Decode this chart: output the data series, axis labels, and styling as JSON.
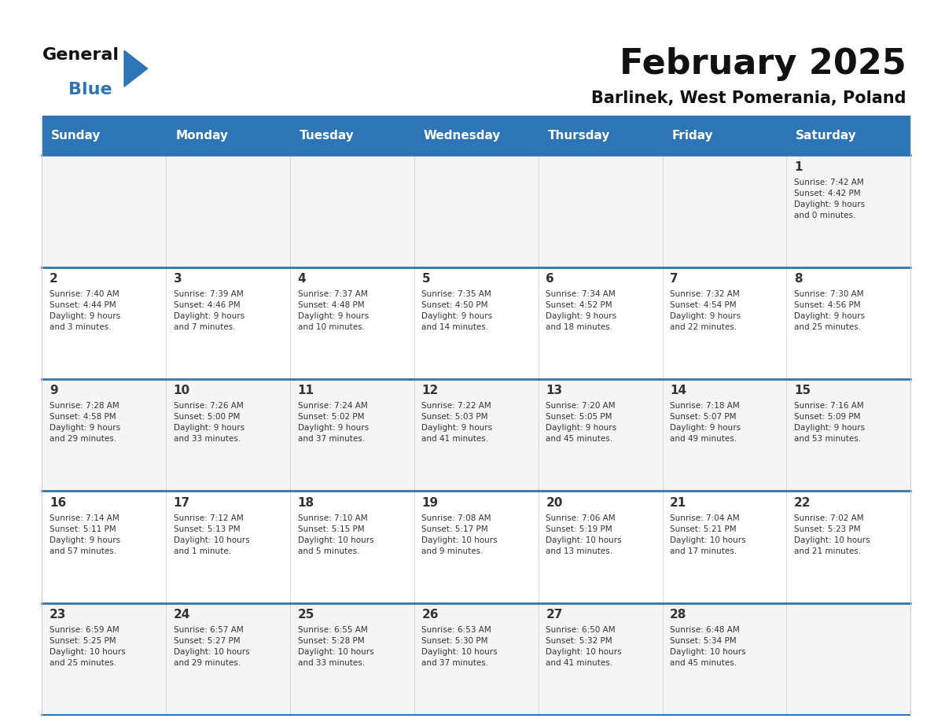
{
  "title": "February 2025",
  "subtitle": "Barlinek, West Pomerania, Poland",
  "header_bg": "#2e75b6",
  "header_text_color": "#ffffff",
  "cell_bg_light": "#f2f2f2",
  "cell_bg_white": "#ffffff",
  "divider_color": "#2e75b6",
  "text_color": "#333333",
  "days_of_week": [
    "Sunday",
    "Monday",
    "Tuesday",
    "Wednesday",
    "Thursday",
    "Friday",
    "Saturday"
  ],
  "weeks": [
    [
      {
        "day": null,
        "info": null
      },
      {
        "day": null,
        "info": null
      },
      {
        "day": null,
        "info": null
      },
      {
        "day": null,
        "info": null
      },
      {
        "day": null,
        "info": null
      },
      {
        "day": null,
        "info": null
      },
      {
        "day": 1,
        "info": "Sunrise: 7:42 AM\nSunset: 4:42 PM\nDaylight: 9 hours\nand 0 minutes."
      }
    ],
    [
      {
        "day": 2,
        "info": "Sunrise: 7:40 AM\nSunset: 4:44 PM\nDaylight: 9 hours\nand 3 minutes."
      },
      {
        "day": 3,
        "info": "Sunrise: 7:39 AM\nSunset: 4:46 PM\nDaylight: 9 hours\nand 7 minutes."
      },
      {
        "day": 4,
        "info": "Sunrise: 7:37 AM\nSunset: 4:48 PM\nDaylight: 9 hours\nand 10 minutes."
      },
      {
        "day": 5,
        "info": "Sunrise: 7:35 AM\nSunset: 4:50 PM\nDaylight: 9 hours\nand 14 minutes."
      },
      {
        "day": 6,
        "info": "Sunrise: 7:34 AM\nSunset: 4:52 PM\nDaylight: 9 hours\nand 18 minutes."
      },
      {
        "day": 7,
        "info": "Sunrise: 7:32 AM\nSunset: 4:54 PM\nDaylight: 9 hours\nand 22 minutes."
      },
      {
        "day": 8,
        "info": "Sunrise: 7:30 AM\nSunset: 4:56 PM\nDaylight: 9 hours\nand 25 minutes."
      }
    ],
    [
      {
        "day": 9,
        "info": "Sunrise: 7:28 AM\nSunset: 4:58 PM\nDaylight: 9 hours\nand 29 minutes."
      },
      {
        "day": 10,
        "info": "Sunrise: 7:26 AM\nSunset: 5:00 PM\nDaylight: 9 hours\nand 33 minutes."
      },
      {
        "day": 11,
        "info": "Sunrise: 7:24 AM\nSunset: 5:02 PM\nDaylight: 9 hours\nand 37 minutes."
      },
      {
        "day": 12,
        "info": "Sunrise: 7:22 AM\nSunset: 5:03 PM\nDaylight: 9 hours\nand 41 minutes."
      },
      {
        "day": 13,
        "info": "Sunrise: 7:20 AM\nSunset: 5:05 PM\nDaylight: 9 hours\nand 45 minutes."
      },
      {
        "day": 14,
        "info": "Sunrise: 7:18 AM\nSunset: 5:07 PM\nDaylight: 9 hours\nand 49 minutes."
      },
      {
        "day": 15,
        "info": "Sunrise: 7:16 AM\nSunset: 5:09 PM\nDaylight: 9 hours\nand 53 minutes."
      }
    ],
    [
      {
        "day": 16,
        "info": "Sunrise: 7:14 AM\nSunset: 5:11 PM\nDaylight: 9 hours\nand 57 minutes."
      },
      {
        "day": 17,
        "info": "Sunrise: 7:12 AM\nSunset: 5:13 PM\nDaylight: 10 hours\nand 1 minute."
      },
      {
        "day": 18,
        "info": "Sunrise: 7:10 AM\nSunset: 5:15 PM\nDaylight: 10 hours\nand 5 minutes."
      },
      {
        "day": 19,
        "info": "Sunrise: 7:08 AM\nSunset: 5:17 PM\nDaylight: 10 hours\nand 9 minutes."
      },
      {
        "day": 20,
        "info": "Sunrise: 7:06 AM\nSunset: 5:19 PM\nDaylight: 10 hours\nand 13 minutes."
      },
      {
        "day": 21,
        "info": "Sunrise: 7:04 AM\nSunset: 5:21 PM\nDaylight: 10 hours\nand 17 minutes."
      },
      {
        "day": 22,
        "info": "Sunrise: 7:02 AM\nSunset: 5:23 PM\nDaylight: 10 hours\nand 21 minutes."
      }
    ],
    [
      {
        "day": 23,
        "info": "Sunrise: 6:59 AM\nSunset: 5:25 PM\nDaylight: 10 hours\nand 25 minutes."
      },
      {
        "day": 24,
        "info": "Sunrise: 6:57 AM\nSunset: 5:27 PM\nDaylight: 10 hours\nand 29 minutes."
      },
      {
        "day": 25,
        "info": "Sunrise: 6:55 AM\nSunset: 5:28 PM\nDaylight: 10 hours\nand 33 minutes."
      },
      {
        "day": 26,
        "info": "Sunrise: 6:53 AM\nSunset: 5:30 PM\nDaylight: 10 hours\nand 37 minutes."
      },
      {
        "day": 27,
        "info": "Sunrise: 6:50 AM\nSunset: 5:32 PM\nDaylight: 10 hours\nand 41 minutes."
      },
      {
        "day": 28,
        "info": "Sunrise: 6:48 AM\nSunset: 5:34 PM\nDaylight: 10 hours\nand 45 minutes."
      },
      {
        "day": null,
        "info": null
      }
    ]
  ],
  "logo_text_general": "General",
  "logo_text_blue": "Blue",
  "logo_triangle_color": "#2e75b6"
}
